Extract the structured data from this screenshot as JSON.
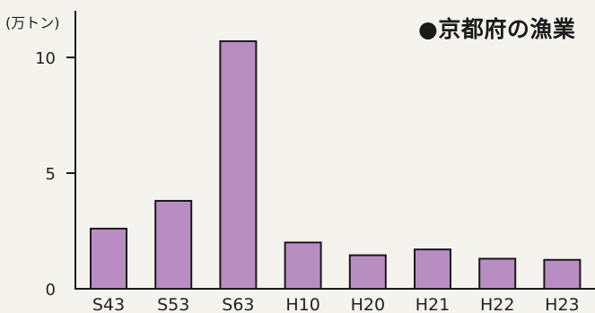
{
  "chart_data": {
    "type": "bar",
    "title": "●京都府の漁業",
    "ylabel": "(万トン)",
    "xlabel": "",
    "categories": [
      "S43",
      "S53",
      "S63",
      "H10",
      "H20",
      "H21",
      "H22",
      "H23"
    ],
    "values": [
      2.6,
      3.8,
      10.7,
      2.0,
      1.45,
      1.7,
      1.3,
      1.25
    ],
    "yticks": [
      0,
      5,
      10
    ],
    "ylim": [
      0,
      12
    ],
    "grid": false,
    "colors": {
      "bar_fill": "#b88ec2",
      "bar_stroke": "#1a1a1a",
      "axis": "#1a1a1a",
      "background": "#f4f3ee"
    }
  }
}
